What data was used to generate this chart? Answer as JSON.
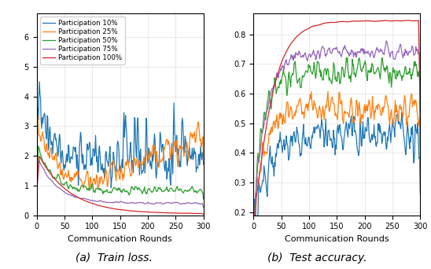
{
  "n_rounds": 300,
  "seed": 17,
  "colors": {
    "10": "#1f77b4",
    "25": "#ff7f0e",
    "50": "#2ca02c",
    "75": "#9467bd",
    "100": "#d62728"
  },
  "labels": {
    "10": "Participation 10%",
    "25": "Participation 25%",
    "50": "Participation 50%",
    "75": "Participation 75%",
    "100": "Participation 100%"
  },
  "xlabel": "Communication Rounds",
  "caption_a": "(a)  Train loss.",
  "caption_b": "(b)  Test accuracy.",
  "figsize": [
    5.48,
    3.42
  ],
  "dpi": 100,
  "loss_ylim": [
    0,
    6.8
  ],
  "acc_ylim": [
    0.19,
    0.87
  ],
  "loss_yticks": [
    0,
    1,
    2,
    3,
    4,
    5,
    6
  ],
  "acc_yticks": [
    0.2,
    0.3,
    0.4,
    0.5,
    0.6,
    0.7,
    0.8
  ],
  "xticks": [
    0,
    50,
    100,
    150,
    200,
    250,
    300
  ]
}
